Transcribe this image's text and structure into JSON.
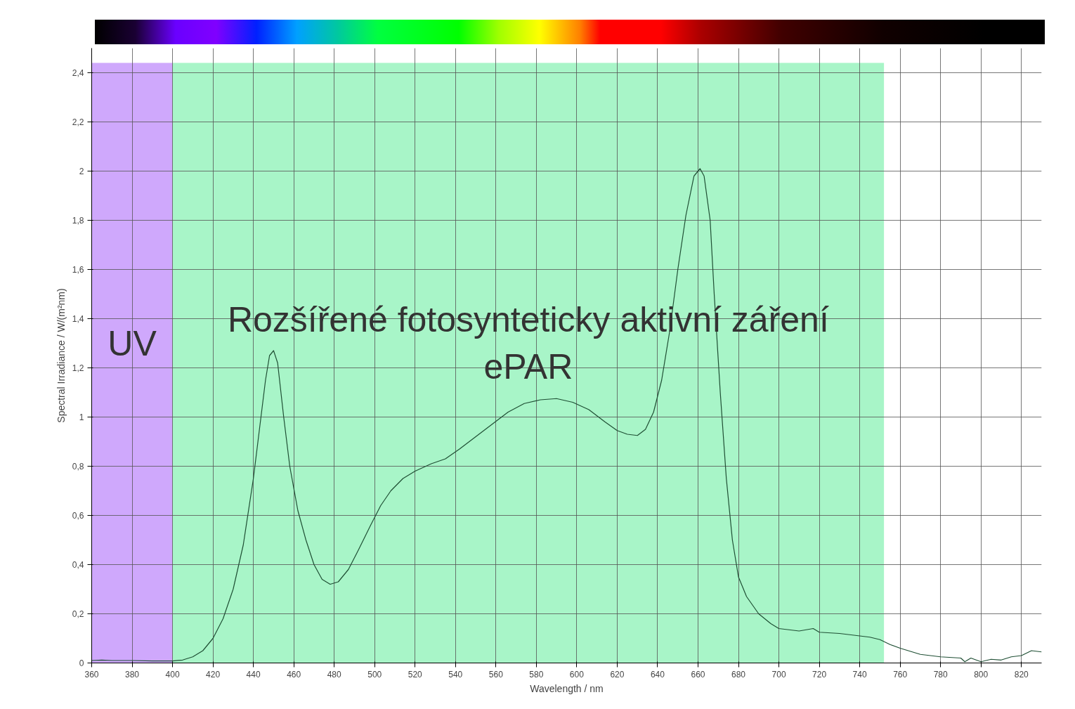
{
  "chart_data": {
    "type": "line",
    "xlabel": "Wavelength / nm",
    "ylabel": "Spectral Irradiance / W/(m²nm)",
    "xlim": [
      360,
      830
    ],
    "ylim": [
      0,
      2.5
    ],
    "xticks": [
      360,
      380,
      400,
      420,
      440,
      460,
      480,
      500,
      520,
      540,
      560,
      580,
      600,
      620,
      640,
      660,
      680,
      700,
      720,
      740,
      760,
      780,
      800,
      820
    ],
    "yticks": [
      0,
      {
        "value": 0.2,
        "label": "0,2"
      },
      {
        "value": 0.4,
        "label": "0,4"
      },
      {
        "value": 0.6,
        "label": "0,6"
      },
      {
        "value": 0.8,
        "label": "0,8"
      },
      1,
      {
        "value": 1.2,
        "label": "1,2"
      },
      {
        "value": 1.4,
        "label": "1,4"
      },
      {
        "value": 1.6,
        "label": "1,6"
      },
      {
        "value": 1.8,
        "label": "1,8"
      },
      2,
      {
        "value": 2.2,
        "label": "2,2"
      },
      {
        "value": 2.4,
        "label": "2,4"
      }
    ],
    "grid": true,
    "marker": "none",
    "line_style": "solid",
    "bands": [
      {
        "axis": "x",
        "from": 360,
        "to": 400,
        "label": "UV",
        "color": "#cfa8fc"
      },
      {
        "axis": "x",
        "from": 400,
        "to": 752,
        "label": "Rozšířené fotosynteticky aktivní záření\nePAR",
        "color": "#a8f5c8"
      }
    ],
    "series": [
      {
        "color": "#1f4f34",
        "x": [
          360,
          365,
          370,
          380,
          390,
          400,
          405,
          410,
          415,
          420,
          425,
          430,
          435,
          440,
          443,
          446,
          448,
          450,
          452,
          455,
          458,
          462,
          466,
          470,
          474,
          478,
          482,
          487,
          492,
          498,
          503,
          508,
          514,
          520,
          528,
          535,
          542,
          550,
          558,
          566,
          574,
          582,
          590,
          598,
          606,
          614,
          620,
          625,
          630,
          634,
          638,
          642,
          646,
          650,
          654,
          658,
          661,
          663,
          666,
          668,
          671,
          674,
          677,
          680,
          684,
          690,
          696,
          700,
          710,
          717,
          720,
          730,
          740,
          745,
          750,
          755,
          760,
          770,
          780,
          790,
          792,
          795,
          800,
          805,
          810,
          815,
          820,
          825,
          830
        ],
        "values": [
          0.01,
          0.012,
          0.01,
          0.01,
          0.008,
          0.008,
          0.012,
          0.025,
          0.05,
          0.1,
          0.18,
          0.3,
          0.48,
          0.75,
          0.95,
          1.15,
          1.25,
          1.27,
          1.22,
          1.0,
          0.8,
          0.62,
          0.5,
          0.4,
          0.34,
          0.32,
          0.33,
          0.38,
          0.46,
          0.56,
          0.64,
          0.7,
          0.75,
          0.78,
          0.81,
          0.83,
          0.87,
          0.92,
          0.97,
          1.02,
          1.055,
          1.07,
          1.075,
          1.06,
          1.03,
          0.98,
          0.945,
          0.93,
          0.925,
          0.95,
          1.02,
          1.15,
          1.35,
          1.6,
          1.82,
          1.98,
          2.01,
          1.98,
          1.8,
          1.5,
          1.1,
          0.75,
          0.5,
          0.35,
          0.27,
          0.2,
          0.16,
          0.14,
          0.13,
          0.14,
          0.125,
          0.12,
          0.11,
          0.105,
          0.095,
          0.075,
          0.06,
          0.035,
          0.025,
          0.02,
          0.005,
          0.02,
          0.005,
          0.015,
          0.012,
          0.025,
          0.03,
          0.05,
          0.045
        ]
      }
    ]
  }
}
